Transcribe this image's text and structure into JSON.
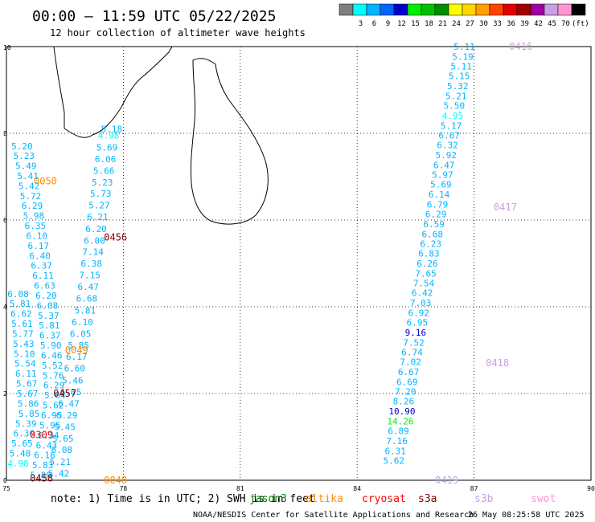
{
  "header": {
    "title": "00:00 – 11:59 UTC 05/22/2025",
    "subtitle": "12 hour collection of altimeter wave heights"
  },
  "colorbar": {
    "unit": "(ft)",
    "stops": [
      {
        "label": "",
        "color": "#7f7f7f"
      },
      {
        "label": "3",
        "color": "#00ffff"
      },
      {
        "label": "6",
        "color": "#00b4ff"
      },
      {
        "label": "9",
        "color": "#0064ff"
      },
      {
        "label": "12",
        "color": "#0000c8"
      },
      {
        "label": "15",
        "color": "#00ee00"
      },
      {
        "label": "18",
        "color": "#00c000"
      },
      {
        "label": "21",
        "color": "#008c00"
      },
      {
        "label": "24",
        "color": "#ffff00"
      },
      {
        "label": "27",
        "color": "#ffd700"
      },
      {
        "label": "30",
        "color": "#ffa000"
      },
      {
        "label": "33",
        "color": "#ff4500"
      },
      {
        "label": "36",
        "color": "#e00000"
      },
      {
        "label": "39",
        "color": "#a00000"
      },
      {
        "label": "42",
        "color": "#a000a0"
      },
      {
        "label": "45",
        "color": "#c8a0e6"
      },
      {
        "label": "70",
        "color": "#ff96d2"
      },
      {
        "label": "",
        "color": "#000000"
      }
    ]
  },
  "footer": {
    "note_prefix": "note:  1) Time is in UTC; 2) SWH is in feet",
    "satellites": [
      {
        "name": "jason3",
        "color": "#008000"
      },
      {
        "name": "altika",
        "color": "#ff8c00"
      },
      {
        "name": "cryosat",
        "color": "#ff0000"
      },
      {
        "name": "s3a",
        "color": "#800000"
      },
      {
        "name": "s3b",
        "color": "#c8a0e6"
      },
      {
        "name": "swot",
        "color": "#ff96d2"
      }
    ],
    "credit": "NOAA/NESDIS Center for Satellite Applications and Research",
    "timestamp": "26 May 08:25:58 UTC 2025"
  },
  "chart_data": {
    "type": "scatter",
    "xlim": [
      75,
      90
    ],
    "ylim": [
      0,
      10
    ],
    "xticks": [
      75,
      78,
      81,
      84,
      87,
      90
    ],
    "yticks": [
      0,
      2,
      4,
      6,
      8,
      10
    ],
    "grid": true,
    "pass_labels": [
      {
        "text": "0050",
        "x": 76.0,
        "y": 6.9,
        "satellite": "altika"
      },
      {
        "text": "0456",
        "x": 77.8,
        "y": 5.6,
        "satellite": "s3a"
      },
      {
        "text": "0049",
        "x": 76.8,
        "y": 3.0,
        "satellite": "altika"
      },
      {
        "text": "0457",
        "x": 76.5,
        "y": 2.0,
        "satellite": "s3a"
      },
      {
        "text": "0309",
        "x": 75.9,
        "y": 1.05,
        "satellite": "cryosat"
      },
      {
        "text": "0458",
        "x": 75.9,
        "y": 0.05,
        "satellite": "s3a"
      },
      {
        "text": "0048",
        "x": 77.8,
        "y": 0.0,
        "satellite": "altika"
      },
      {
        "text": "0416",
        "x": 88.2,
        "y": 10.0,
        "satellite": "s3b"
      },
      {
        "text": "0417",
        "x": 87.8,
        "y": 6.3,
        "satellite": "s3b"
      },
      {
        "text": "0418",
        "x": 87.6,
        "y": 2.7,
        "satellite": "s3b"
      },
      {
        "text": "0419",
        "x": 86.3,
        "y": 0.0,
        "satellite": "s3b"
      }
    ],
    "series": [
      {
        "points": [
          {
            "x": 86.75,
            "y": 10.0,
            "v": "5.11",
            "c": "#00b4ff"
          },
          {
            "x": 86.71,
            "y": 9.77,
            "v": "5.19",
            "c": "#00b4ff"
          },
          {
            "x": 86.67,
            "y": 9.55,
            "v": "5.11",
            "c": "#00b4ff"
          },
          {
            "x": 86.62,
            "y": 9.32,
            "v": "5.15",
            "c": "#00b4ff"
          },
          {
            "x": 86.58,
            "y": 9.09,
            "v": "5.32",
            "c": "#00b4ff"
          },
          {
            "x": 86.54,
            "y": 8.86,
            "v": "5.21",
            "c": "#00b4ff"
          },
          {
            "x": 86.49,
            "y": 8.64,
            "v": "5.50",
            "c": "#00b4ff"
          },
          {
            "x": 86.45,
            "y": 8.41,
            "v": "4.95",
            "c": "#00ffff"
          },
          {
            "x": 86.41,
            "y": 8.18,
            "v": "5.17",
            "c": "#00b4ff"
          },
          {
            "x": 86.36,
            "y": 7.95,
            "v": "6.67",
            "c": "#00b4ff"
          },
          {
            "x": 86.32,
            "y": 7.73,
            "v": "6.32",
            "c": "#00b4ff"
          },
          {
            "x": 86.28,
            "y": 7.5,
            "v": "5.92",
            "c": "#00b4ff"
          },
          {
            "x": 86.23,
            "y": 7.27,
            "v": "6.47",
            "c": "#00b4ff"
          },
          {
            "x": 86.19,
            "y": 7.05,
            "v": "5.97",
            "c": "#00b4ff"
          },
          {
            "x": 86.15,
            "y": 6.82,
            "v": "5.69",
            "c": "#00b4ff"
          },
          {
            "x": 86.1,
            "y": 6.59,
            "v": "6.14",
            "c": "#00b4ff"
          },
          {
            "x": 86.06,
            "y": 6.36,
            "v": "6.79",
            "c": "#00b4ff"
          },
          {
            "x": 86.02,
            "y": 6.14,
            "v": "6.29",
            "c": "#00b4ff"
          },
          {
            "x": 85.97,
            "y": 5.91,
            "v": "6.59",
            "c": "#00b4ff"
          },
          {
            "x": 85.93,
            "y": 5.68,
            "v": "6.68",
            "c": "#00b4ff"
          },
          {
            "x": 85.89,
            "y": 5.45,
            "v": "6.23",
            "c": "#00b4ff"
          },
          {
            "x": 85.84,
            "y": 5.23,
            "v": "6.83",
            "c": "#00b4ff"
          },
          {
            "x": 85.8,
            "y": 5.0,
            "v": "6.26",
            "c": "#00b4ff"
          },
          {
            "x": 85.76,
            "y": 4.77,
            "v": "7.65",
            "c": "#00b4ff"
          },
          {
            "x": 85.71,
            "y": 4.55,
            "v": "7.54",
            "c": "#00b4ff"
          },
          {
            "x": 85.67,
            "y": 4.32,
            "v": "6.42",
            "c": "#00b4ff"
          },
          {
            "x": 85.63,
            "y": 4.09,
            "v": "7.03",
            "c": "#00b4ff"
          },
          {
            "x": 85.58,
            "y": 3.86,
            "v": "6.92",
            "c": "#00b4ff"
          },
          {
            "x": 85.54,
            "y": 3.64,
            "v": "6.95",
            "c": "#00b4ff"
          },
          {
            "x": 85.5,
            "y": 3.41,
            "v": "9.16",
            "c": "#0000c8"
          },
          {
            "x": 85.45,
            "y": 3.18,
            "v": "7.52",
            "c": "#00b4ff"
          },
          {
            "x": 85.41,
            "y": 2.95,
            "v": "6.74",
            "c": "#00b4ff"
          },
          {
            "x": 85.37,
            "y": 2.73,
            "v": "7.02",
            "c": "#00b4ff"
          },
          {
            "x": 85.32,
            "y": 2.5,
            "v": "6.67",
            "c": "#00b4ff"
          },
          {
            "x": 85.28,
            "y": 2.27,
            "v": "6.69",
            "c": "#00b4ff"
          },
          {
            "x": 85.24,
            "y": 2.05,
            "v": "7.20",
            "c": "#00b4ff"
          },
          {
            "x": 85.19,
            "y": 1.82,
            "v": "8.26",
            "c": "#00b4ff"
          },
          {
            "x": 85.15,
            "y": 1.59,
            "v": "10.90",
            "c": "#0000c8"
          },
          {
            "x": 85.11,
            "y": 1.36,
            "v": "14.26",
            "c": "#00ee00"
          },
          {
            "x": 85.06,
            "y": 1.14,
            "v": "6.89",
            "c": "#00b4ff"
          },
          {
            "x": 85.02,
            "y": 0.91,
            "v": "7.16",
            "c": "#00b4ff"
          },
          {
            "x": 84.98,
            "y": 0.68,
            "v": "6.31",
            "c": "#00b4ff"
          },
          {
            "x": 84.94,
            "y": 0.45,
            "v": "5.62",
            "c": "#00b4ff"
          }
        ]
      },
      {
        "points": [
          {
            "x": 77.7,
            "y": 8.1,
            "v": "5.18",
            "c": "#00b4ff"
          },
          {
            "x": 77.62,
            "y": 7.95,
            "v": "4.98",
            "c": "#00ffff"
          },
          {
            "x": 77.58,
            "y": 7.68,
            "v": "5.69",
            "c": "#00b4ff"
          },
          {
            "x": 77.54,
            "y": 7.41,
            "v": "6.06",
            "c": "#00b4ff"
          },
          {
            "x": 77.5,
            "y": 7.14,
            "v": "5.66",
            "c": "#00b4ff"
          },
          {
            "x": 77.46,
            "y": 6.87,
            "v": "5.23",
            "c": "#00b4ff"
          },
          {
            "x": 77.42,
            "y": 6.61,
            "v": "5.73",
            "c": "#00b4ff"
          },
          {
            "x": 77.38,
            "y": 6.34,
            "v": "5.27",
            "c": "#00b4ff"
          },
          {
            "x": 77.34,
            "y": 6.07,
            "v": "6.21",
            "c": "#00b4ff"
          },
          {
            "x": 77.3,
            "y": 5.8,
            "v": "6.20",
            "c": "#00b4ff"
          },
          {
            "x": 77.26,
            "y": 5.53,
            "v": "6.00",
            "c": "#00b4ff"
          },
          {
            "x": 77.22,
            "y": 5.27,
            "v": "7.14",
            "c": "#00b4ff"
          },
          {
            "x": 77.18,
            "y": 5.0,
            "v": "6.38",
            "c": "#00b4ff"
          },
          {
            "x": 77.14,
            "y": 4.73,
            "v": "7.15",
            "c": "#00b4ff"
          },
          {
            "x": 77.1,
            "y": 4.46,
            "v": "6.47",
            "c": "#00b4ff"
          },
          {
            "x": 77.06,
            "y": 4.19,
            "v": "6.68",
            "c": "#00b4ff"
          },
          {
            "x": 77.02,
            "y": 3.92,
            "v": "5.81",
            "c": "#00b4ff"
          },
          {
            "x": 76.95,
            "y": 3.65,
            "v": "6.10",
            "c": "#00b4ff"
          },
          {
            "x": 76.9,
            "y": 3.38,
            "v": "6.05",
            "c": "#00b4ff"
          },
          {
            "x": 76.85,
            "y": 3.11,
            "v": "5.85",
            "c": "#00b4ff"
          },
          {
            "x": 76.8,
            "y": 2.85,
            "v": "6.17",
            "c": "#00b4ff"
          },
          {
            "x": 76.75,
            "y": 2.58,
            "v": "6.60",
            "c": "#00b4ff"
          },
          {
            "x": 76.7,
            "y": 2.31,
            "v": "5.46",
            "c": "#00b4ff"
          },
          {
            "x": 76.65,
            "y": 2.04,
            "v": "6.05",
            "c": "#00b4ff"
          },
          {
            "x": 76.6,
            "y": 1.77,
            "v": "6.47",
            "c": "#00b4ff"
          },
          {
            "x": 76.55,
            "y": 1.5,
            "v": "6.29",
            "c": "#00b4ff"
          },
          {
            "x": 76.5,
            "y": 1.23,
            "v": "5.45",
            "c": "#00b4ff"
          },
          {
            "x": 76.45,
            "y": 0.96,
            "v": "5.65",
            "c": "#00b4ff"
          },
          {
            "x": 76.42,
            "y": 0.7,
            "v": "6.08",
            "c": "#00b4ff"
          },
          {
            "x": 76.38,
            "y": 0.43,
            "v": "5.21",
            "c": "#00b4ff"
          },
          {
            "x": 76.34,
            "y": 0.16,
            "v": "5.42",
            "c": "#00b4ff"
          }
        ]
      },
      {
        "points": [
          {
            "x": 75.4,
            "y": 7.7,
            "v": "5.20",
            "c": "#00b4ff"
          },
          {
            "x": 75.45,
            "y": 7.48,
            "v": "5.23",
            "c": "#00b4ff"
          },
          {
            "x": 75.5,
            "y": 7.25,
            "v": "5.49",
            "c": "#00b4ff"
          },
          {
            "x": 75.55,
            "y": 7.02,
            "v": "5.41",
            "c": "#00b4ff"
          },
          {
            "x": 75.58,
            "y": 6.79,
            "v": "5.42",
            "c": "#00b4ff"
          },
          {
            "x": 75.62,
            "y": 6.56,
            "v": "5.72",
            "c": "#00b4ff"
          },
          {
            "x": 75.66,
            "y": 6.33,
            "v": "6.29",
            "c": "#00b4ff"
          },
          {
            "x": 75.7,
            "y": 6.1,
            "v": "5.98",
            "c": "#00b4ff"
          },
          {
            "x": 75.74,
            "y": 5.87,
            "v": "6.35",
            "c": "#00b4ff"
          },
          {
            "x": 75.78,
            "y": 5.64,
            "v": "6.10",
            "c": "#00b4ff"
          },
          {
            "x": 75.82,
            "y": 5.41,
            "v": "6.17",
            "c": "#00b4ff"
          },
          {
            "x": 75.86,
            "y": 5.18,
            "v": "6.40",
            "c": "#00b4ff"
          },
          {
            "x": 75.9,
            "y": 4.95,
            "v": "6.37",
            "c": "#00b4ff"
          },
          {
            "x": 75.94,
            "y": 4.72,
            "v": "6.11",
            "c": "#00b4ff"
          },
          {
            "x": 75.98,
            "y": 4.49,
            "v": "6.63",
            "c": "#00b4ff"
          },
          {
            "x": 76.02,
            "y": 4.26,
            "v": "6.20",
            "c": "#00b4ff"
          },
          {
            "x": 76.05,
            "y": 4.03,
            "v": "6.08",
            "c": "#00b4ff"
          },
          {
            "x": 76.08,
            "y": 3.8,
            "v": "5.37",
            "c": "#00b4ff"
          },
          {
            "x": 76.1,
            "y": 3.57,
            "v": "5.81",
            "c": "#00b4ff"
          },
          {
            "x": 76.12,
            "y": 3.34,
            "v": "6.37",
            "c": "#00b4ff"
          },
          {
            "x": 76.14,
            "y": 3.11,
            "v": "5.90",
            "c": "#00b4ff"
          },
          {
            "x": 76.16,
            "y": 2.88,
            "v": "6.46",
            "c": "#00b4ff"
          },
          {
            "x": 76.18,
            "y": 2.65,
            "v": "5.52",
            "c": "#00b4ff"
          },
          {
            "x": 76.2,
            "y": 2.42,
            "v": "5.76",
            "c": "#00b4ff"
          },
          {
            "x": 76.22,
            "y": 2.19,
            "v": "6.29",
            "c": "#00b4ff"
          },
          {
            "x": 76.24,
            "y": 1.96,
            "v": "5.64",
            "c": "#00b4ff"
          },
          {
            "x": 76.2,
            "y": 1.73,
            "v": "5.62",
            "c": "#00b4ff"
          },
          {
            "x": 76.16,
            "y": 1.5,
            "v": "6.95",
            "c": "#00b4ff"
          },
          {
            "x": 76.12,
            "y": 1.27,
            "v": "5.95",
            "c": "#00b4ff"
          },
          {
            "x": 76.08,
            "y": 1.04,
            "v": "6.34",
            "c": "#00b4ff"
          },
          {
            "x": 76.03,
            "y": 0.81,
            "v": "6.43",
            "c": "#00b4ff"
          },
          {
            "x": 75.98,
            "y": 0.58,
            "v": "6.16",
            "c": "#00b4ff"
          },
          {
            "x": 75.93,
            "y": 0.35,
            "v": "5.83",
            "c": "#00b4ff"
          },
          {
            "x": 75.88,
            "y": 0.12,
            "v": "5.80",
            "c": "#00b4ff"
          }
        ]
      },
      {
        "points": [
          {
            "x": 75.3,
            "y": 4.3,
            "v": "6.08",
            "c": "#00b4ff"
          },
          {
            "x": 75.35,
            "y": 4.07,
            "v": "5.81",
            "c": "#00b4ff"
          },
          {
            "x": 75.38,
            "y": 3.84,
            "v": "6.62",
            "c": "#00b4ff"
          },
          {
            "x": 75.4,
            "y": 3.61,
            "v": "5.61",
            "c": "#00b4ff"
          },
          {
            "x": 75.42,
            "y": 3.38,
            "v": "5.77",
            "c": "#00b4ff"
          },
          {
            "x": 75.44,
            "y": 3.15,
            "v": "5.43",
            "c": "#00b4ff"
          },
          {
            "x": 75.46,
            "y": 2.92,
            "v": "5.10",
            "c": "#00b4ff"
          },
          {
            "x": 75.48,
            "y": 2.69,
            "v": "5.54",
            "c": "#00b4ff"
          },
          {
            "x": 75.5,
            "y": 2.46,
            "v": "6.11",
            "c": "#00b4ff"
          },
          {
            "x": 75.52,
            "y": 2.23,
            "v": "5.67",
            "c": "#00b4ff"
          },
          {
            "x": 75.54,
            "y": 2.0,
            "v": "5.67",
            "c": "#00b4ff"
          },
          {
            "x": 75.56,
            "y": 1.77,
            "v": "5.86",
            "c": "#00b4ff"
          },
          {
            "x": 75.58,
            "y": 1.54,
            "v": "5.85",
            "c": "#00b4ff"
          },
          {
            "x": 75.5,
            "y": 1.31,
            "v": "5.39",
            "c": "#00b4ff"
          },
          {
            "x": 75.45,
            "y": 1.08,
            "v": "6.30",
            "c": "#00b4ff"
          },
          {
            "x": 75.4,
            "y": 0.85,
            "v": "5.65",
            "c": "#00b4ff"
          },
          {
            "x": 75.35,
            "y": 0.62,
            "v": "5.48",
            "c": "#00b4ff"
          },
          {
            "x": 75.3,
            "y": 0.39,
            "v": "4.98",
            "c": "#00ffff"
          }
        ]
      }
    ]
  },
  "map": {
    "tick_labels_x": [
      "75",
      "78",
      "81",
      "84",
      "87",
      "90"
    ],
    "tick_labels_y": [
      "0",
      "2",
      "4",
      "6",
      "8",
      "10"
    ]
  }
}
